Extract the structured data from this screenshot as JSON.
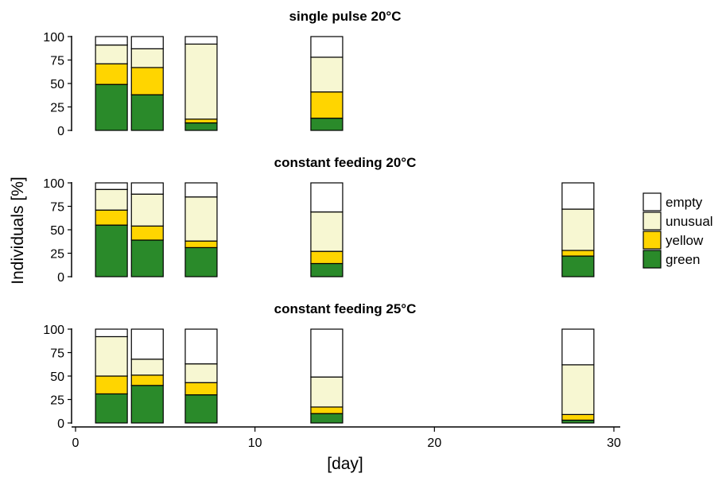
{
  "chart_data": {
    "type": "bar",
    "stacked": true,
    "xlabel": "[day]",
    "ylabel": "Individuals [%]",
    "xlim": [
      0,
      30
    ],
    "x_ticks": [
      0,
      10,
      20,
      30
    ],
    "ylim": [
      0,
      100
    ],
    "y_ticks": [
      0,
      25,
      50,
      75,
      100
    ],
    "legend": {
      "placement": "right",
      "entries": [
        "empty",
        "unusual",
        "yellow",
        "green"
      ]
    },
    "colors": {
      "green": "#2a8a2a",
      "yellow": "#ffd500",
      "unusual": "#f7f7d2",
      "empty": "#ffffff"
    },
    "panels": [
      {
        "title": "single pulse 20°C",
        "bars": [
          {
            "day": 2,
            "green": 49,
            "yellow": 22,
            "unusual": 20,
            "empty": 9
          },
          {
            "day": 4,
            "green": 38,
            "yellow": 29,
            "unusual": 20,
            "empty": 13
          },
          {
            "day": 7,
            "green": 8,
            "yellow": 4,
            "unusual": 80,
            "empty": 8
          },
          {
            "day": 14,
            "green": 13,
            "yellow": 28,
            "unusual": 37,
            "empty": 22
          }
        ]
      },
      {
        "title": "constant feeding 20°C",
        "bars": [
          {
            "day": 2,
            "green": 55,
            "yellow": 16,
            "unusual": 22,
            "empty": 7
          },
          {
            "day": 4,
            "green": 39,
            "yellow": 15,
            "unusual": 34,
            "empty": 12
          },
          {
            "day": 7,
            "green": 31,
            "yellow": 7,
            "unusual": 47,
            "empty": 15
          },
          {
            "day": 14,
            "green": 14,
            "yellow": 13,
            "unusual": 42,
            "empty": 31
          },
          {
            "day": 28,
            "green": 22,
            "yellow": 6,
            "unusual": 44,
            "empty": 28
          }
        ]
      },
      {
        "title": "constant feeding 25°C",
        "bars": [
          {
            "day": 2,
            "green": 31,
            "yellow": 19,
            "unusual": 42,
            "empty": 8
          },
          {
            "day": 4,
            "green": 40,
            "yellow": 11,
            "unusual": 17,
            "empty": 32
          },
          {
            "day": 7,
            "green": 30,
            "yellow": 13,
            "unusual": 20,
            "empty": 37
          },
          {
            "day": 14,
            "green": 10,
            "yellow": 7,
            "unusual": 32,
            "empty": 51
          },
          {
            "day": 28,
            "green": 3,
            "yellow": 6,
            "unusual": 53,
            "empty": 38
          }
        ]
      }
    ]
  }
}
